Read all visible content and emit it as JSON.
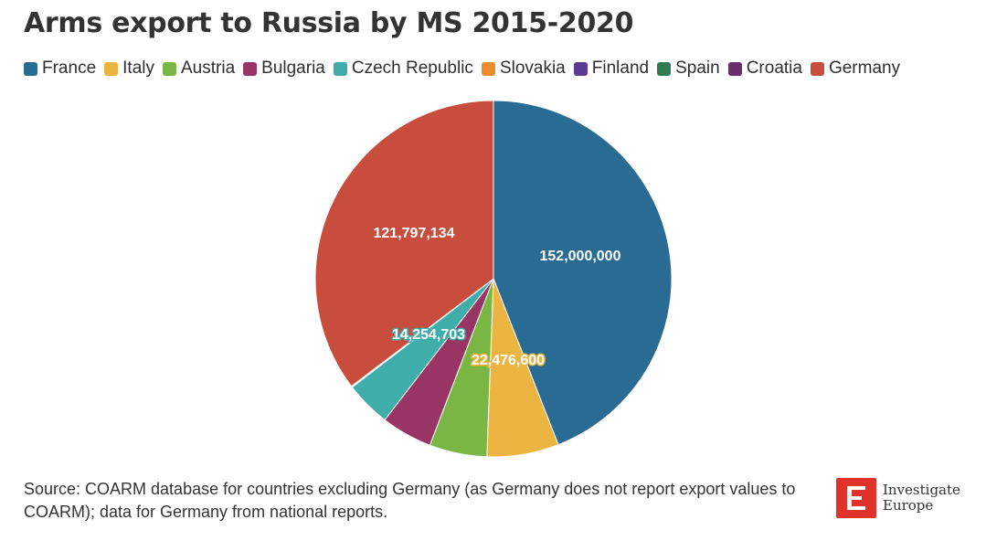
{
  "title": "Arms export to Russia by MS 2015-2020",
  "legend": [
    {
      "label": "France",
      "color": "#2a6b94"
    },
    {
      "label": "Italy",
      "color": "#ecb440"
    },
    {
      "label": "Austria",
      "color": "#79b643"
    },
    {
      "label": "Bulgaria",
      "color": "#983565"
    },
    {
      "label": "Czech Republic",
      "color": "#3fadaa"
    },
    {
      "label": "Slovakia",
      "color": "#ec8c2d"
    },
    {
      "label": "Finland",
      "color": "#5e3b90"
    },
    {
      "label": "Spain",
      "color": "#2e7d52"
    },
    {
      "label": "Croatia",
      "color": "#6b2d6b"
    },
    {
      "label": "Germany",
      "color": "#c94d3d"
    }
  ],
  "source": "Source: COARM database for countries excluding Germany (as Germany does not report export values to COARM); data for Germany from national reports.",
  "brand": {
    "line1": "Investigate",
    "line2": "Europe",
    "icon": "e-logo-icon"
  },
  "chart_data": {
    "type": "pie",
    "title": "Arms export to Russia by MS 2015-2020",
    "legend_position": "top",
    "slices": [
      {
        "label": "France",
        "value": 152000000,
        "display": "152,000,000",
        "color": "#2a6b94"
      },
      {
        "label": "Italy",
        "value": 22476600,
        "display": "22,476,600",
        "color": "#ecb440"
      },
      {
        "label": "Austria",
        "value": 18000000,
        "display": "",
        "color": "#79b643"
      },
      {
        "label": "Bulgaria",
        "value": 16000000,
        "display": "",
        "color": "#983565"
      },
      {
        "label": "Czech Republic",
        "value": 14254703,
        "display": "14,254,703",
        "color": "#3fadaa"
      },
      {
        "label": "Slovakia",
        "value": 150000,
        "display": "",
        "color": "#ec8c2d"
      },
      {
        "label": "Finland",
        "value": 100000,
        "display": "",
        "color": "#5e3b90"
      },
      {
        "label": "Spain",
        "value": 80000,
        "display": "",
        "color": "#2e7d52"
      },
      {
        "label": "Croatia",
        "value": 50000,
        "display": "",
        "color": "#6b2d6b"
      },
      {
        "label": "Germany",
        "value": 121797134,
        "display": "121,797,134",
        "color": "#c94d3d"
      }
    ]
  }
}
